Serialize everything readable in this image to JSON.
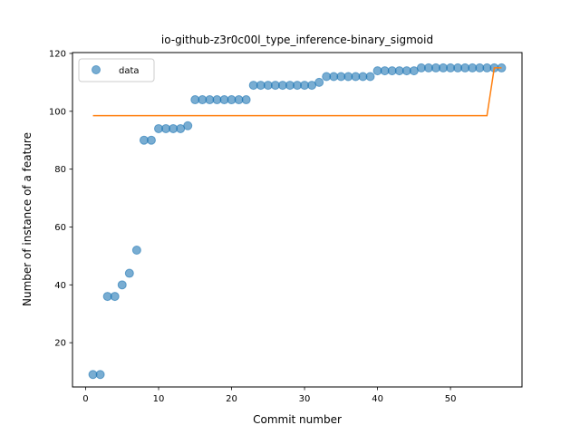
{
  "chart_data": {
    "type": "scatter",
    "title": "io-github-z3r0c00l_type_inference-binary_sigmoid",
    "xlabel": "Commit number",
    "ylabel": "Number of instance of a feature",
    "xlim": [
      -1.8,
      59.8
    ],
    "ylim": [
      4.7,
      120.3
    ],
    "xticks": [
      0,
      10,
      20,
      30,
      40,
      50
    ],
    "yticks": [
      20,
      40,
      60,
      80,
      100,
      120
    ],
    "grid": false,
    "legend_position": "top-left",
    "series": [
      {
        "name": "data",
        "kind": "scatter",
        "color": "#1f77b4",
        "x": [
          1,
          2,
          3,
          4,
          5,
          6,
          7,
          8,
          9,
          10,
          11,
          12,
          13,
          14,
          15,
          16,
          17,
          18,
          19,
          20,
          21,
          22,
          23,
          24,
          25,
          26,
          27,
          28,
          29,
          30,
          31,
          32,
          33,
          34,
          35,
          36,
          37,
          38,
          39,
          40,
          41,
          42,
          43,
          44,
          45,
          46,
          47,
          48,
          49,
          50,
          51,
          52,
          53,
          54,
          55,
          56,
          57
        ],
        "y": [
          9,
          9,
          36,
          36,
          40,
          44,
          52,
          90,
          90,
          94,
          94,
          94,
          94,
          95,
          104,
          104,
          104,
          104,
          104,
          104,
          104,
          104,
          109,
          109,
          109,
          109,
          109,
          109,
          109,
          109,
          109,
          110,
          112,
          112,
          112,
          112,
          112,
          112,
          112,
          114,
          114,
          114,
          114,
          114,
          114,
          115,
          115,
          115,
          115,
          115,
          115,
          115,
          115,
          115,
          115,
          115,
          115
        ]
      },
      {
        "kind": "line",
        "color": "#ff7f0e",
        "x": [
          1,
          2,
          3,
          4,
          5,
          6,
          7,
          8,
          9,
          10,
          11,
          12,
          13,
          14,
          15,
          16,
          17,
          18,
          19,
          20,
          21,
          22,
          23,
          24,
          25,
          26,
          27,
          28,
          29,
          30,
          31,
          32,
          33,
          34,
          35,
          36,
          37,
          38,
          39,
          40,
          41,
          42,
          43,
          44,
          45,
          46,
          47,
          48,
          49,
          50,
          51,
          52,
          53,
          54,
          55,
          56,
          57
        ],
        "y": [
          98.5,
          98.5,
          98.5,
          98.5,
          98.5,
          98.5,
          98.5,
          98.5,
          98.5,
          98.5,
          98.5,
          98.5,
          98.5,
          98.5,
          98.5,
          98.5,
          98.5,
          98.5,
          98.5,
          98.5,
          98.5,
          98.5,
          98.5,
          98.5,
          98.5,
          98.5,
          98.5,
          98.5,
          98.5,
          98.5,
          98.5,
          98.5,
          98.5,
          98.5,
          98.5,
          98.5,
          98.5,
          98.5,
          98.5,
          98.5,
          98.5,
          98.5,
          98.5,
          98.5,
          98.5,
          98.5,
          98.5,
          98.5,
          98.5,
          98.5,
          98.5,
          98.5,
          98.5,
          98.5,
          98.5,
          115,
          115
        ]
      }
    ]
  }
}
